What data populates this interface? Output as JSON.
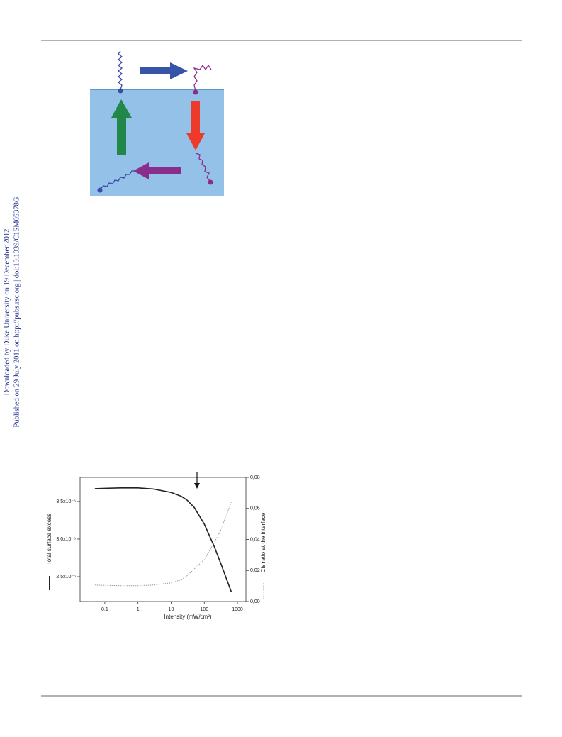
{
  "margin_notes": [
    "Downloaded by Duke University on 19 December 2012",
    "Published on 29 July 2011 on http://pubs.rsc.org | doi:10.1039/C1SM05378G"
  ],
  "chart_data": {
    "type": "line",
    "x_label": "Intensity (mW/cm²)",
    "y_label": "Total surface excess",
    "y2_label": "Cis ratio at the interface",
    "log_x": true,
    "xlim": [
      0.018,
      1800
    ],
    "xticks": [
      {
        "value": 0.1,
        "label": "0,1"
      },
      1,
      10,
      100,
      1000
    ],
    "ylim": [
      2.17e-06,
      3.82e-06
    ],
    "yticks": [
      {
        "value": 2.5e-06,
        "label": "2,5x10⁻⁶"
      },
      {
        "value": 3e-06,
        "label": "3,0x10⁻⁶"
      },
      {
        "value": 3.5e-06,
        "label": "3,5x10⁻⁶"
      }
    ],
    "y2lim": [
      0,
      0.08
    ],
    "y2ticks": [
      {
        "value": 0,
        "label": "0,00"
      },
      {
        "value": 0.02,
        "label": "0,02"
      },
      {
        "value": 0.04,
        "label": "0,04"
      },
      {
        "value": 0.06,
        "label": "0,06"
      },
      {
        "value": 0.08,
        "label": "0,08"
      }
    ],
    "x": [
      0.05,
      0.1,
      0.3,
      1,
      3,
      10,
      20,
      30,
      50,
      100,
      200,
      300,
      650
    ],
    "series": [
      {
        "color": "#222222",
        "dash": "solid",
        "values": [
          3.67e-06,
          3.675e-06,
          3.68e-06,
          3.68e-06,
          3.665e-06,
          3.62e-06,
          3.57e-06,
          3.52e-06,
          3.42e-06,
          3.2e-06,
          2.9e-06,
          2.7e-06,
          2.3e-06
        ]
      },
      {
        "color": "#9a9a9a",
        "dash": "dotted",
        "axis": "y2",
        "values": [
          0.0106,
          0.0104,
          0.0102,
          0.0102,
          0.0106,
          0.012,
          0.014,
          0.0165,
          0.021,
          0.027,
          0.038,
          0.045,
          0.064
        ]
      }
    ]
  }
}
